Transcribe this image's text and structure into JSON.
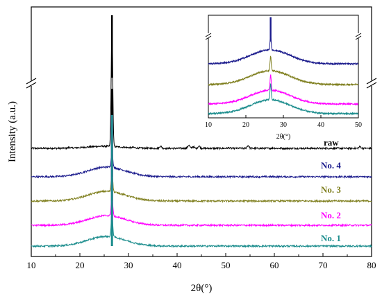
{
  "chart_data": {
    "type": "line",
    "xlabel": "2θ(°)",
    "ylabel": "Intensity (a.u.)",
    "xlim": [
      10,
      80
    ],
    "xticks": [
      "10",
      "20",
      "30",
      "40",
      "50",
      "60",
      "70",
      "80"
    ],
    "y_axis_break": true,
    "series": [
      {
        "name": "raw",
        "color": "#000000",
        "baseline": 0.0,
        "peaks": [
          [
            17.8,
            0.05
          ],
          [
            26.6,
            9.0
          ],
          [
            31.0,
            0.03
          ],
          [
            36.6,
            0.16
          ],
          [
            42.4,
            0.22
          ],
          [
            43.3,
            0.12
          ],
          [
            44.5,
            0.17
          ],
          [
            50.6,
            0.04
          ],
          [
            54.6,
            0.2
          ],
          [
            59.8,
            0.03
          ],
          [
            77.6,
            0.12
          ]
        ]
      },
      {
        "name": "No. 4",
        "color": "#1a1a8c",
        "baseline": 0.0,
        "peaks": [
          [
            26.6,
            1.4
          ]
        ]
      },
      {
        "name": "No. 3",
        "color": "#808020",
        "baseline": 0.0,
        "peaks": [
          [
            26.6,
            1.5
          ]
        ]
      },
      {
        "name": "No. 2",
        "color": "#ff00ff",
        "baseline": 0.0,
        "peaks": [
          [
            26.6,
            1.6
          ]
        ]
      },
      {
        "name": "No. 1",
        "color": "#1a8c8c",
        "baseline": 0.0,
        "peaks": [
          [
            26.6,
            1.7
          ]
        ]
      }
    ],
    "inset": {
      "xlabel": "2θ(°)",
      "xlim": [
        10,
        50
      ],
      "xticks": [
        "10",
        "20",
        "30",
        "40",
        "50"
      ],
      "series_names": [
        "No. 4",
        "No. 3",
        "No. 2",
        "No. 1"
      ]
    }
  }
}
